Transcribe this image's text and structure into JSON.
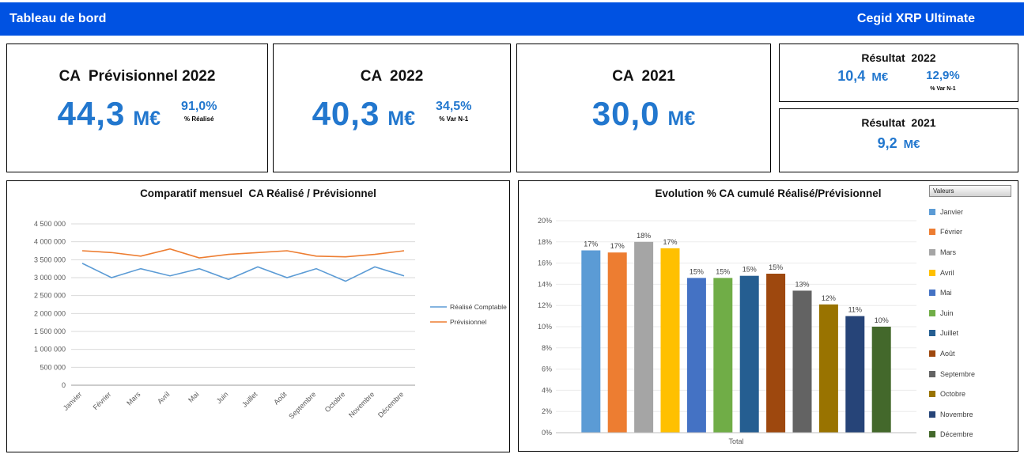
{
  "theme": {
    "header_blue": "#0052E2",
    "value_blue": "#2277CE"
  },
  "header": {
    "title": "Tableau de bord",
    "brand": "Cegid XRP Ultimate"
  },
  "kpis": {
    "previsionnel": {
      "title": "CA  Prévisionnel 2022",
      "value": "44,3",
      "unit": "M€",
      "pct": "91,0%",
      "pct_label": "% Réalisé"
    },
    "ca_2022": {
      "title": "CA  2022",
      "value": "40,3",
      "unit": "M€",
      "pct": "34,5%",
      "pct_label": "% Var N-1"
    },
    "ca_2021": {
      "title": "CA  2021",
      "value": "30,0",
      "unit": "M€"
    },
    "resultat_2022": {
      "title": "Résultat  2022",
      "value": "10,4",
      "unit": "M€",
      "pct": "12,9%",
      "pct_label": "% Var N-1"
    },
    "resultat_2021": {
      "title": "Résultat  2021",
      "value": "9,2",
      "unit": "M€"
    }
  },
  "chart_data": [
    {
      "type": "line",
      "title": "Comparatif mensuel  CA Réalisé / Prévisionnel",
      "categories": [
        "Janvier",
        "Février",
        "Mars",
        "Avril",
        "Mai",
        "Juin",
        "Juillet",
        "Août",
        "Septembre",
        "Octobre",
        "Novembre",
        "Décembre"
      ],
      "series": [
        {
          "name": "Réalisé Comptable",
          "color": "#5B9BD5",
          "values": [
            3400000,
            3000000,
            3250000,
            3050000,
            3250000,
            2950000,
            3300000,
            3000000,
            3250000,
            2900000,
            3300000,
            3050000
          ]
        },
        {
          "name": "Prévisionnel",
          "color": "#ED7D31",
          "values": [
            3750000,
            3700000,
            3600000,
            3800000,
            3550000,
            3650000,
            3700000,
            3750000,
            3600000,
            3580000,
            3650000,
            3750000
          ]
        }
      ],
      "ylim": [
        0,
        4500000
      ],
      "ytick_step": 500000,
      "grid": true,
      "legend_position": "right"
    },
    {
      "type": "bar",
      "title": "Evolution % CA cumulé Réalisé/Prévisionnel",
      "legend_title": "Valeurs",
      "xlabel": "Total",
      "categories": [
        "Janvier",
        "Février",
        "Mars",
        "Avril",
        "Mai",
        "Juin",
        "Juillet",
        "Août",
        "Septembre",
        "Octobre",
        "Novembre",
        "Décembre"
      ],
      "values": [
        17.2,
        17,
        18,
        17.4,
        14.6,
        14.6,
        14.8,
        15,
        13.4,
        12.1,
        11,
        10
      ],
      "labels": [
        "17%",
        "17%",
        "18%",
        "17%",
        "15%",
        "15%",
        "15%",
        "15%",
        "13%",
        "12%",
        "11%",
        "10%"
      ],
      "colors": [
        "#5B9BD5",
        "#ED7D31",
        "#A5A5A5",
        "#FFC000",
        "#4472C4",
        "#70AD47",
        "#255E91",
        "#9E480E",
        "#636363",
        "#997300",
        "#264478",
        "#43682B"
      ],
      "ylim": [
        0,
        20
      ],
      "ytick_step": 2,
      "grid": true,
      "legend_position": "right"
    }
  ]
}
